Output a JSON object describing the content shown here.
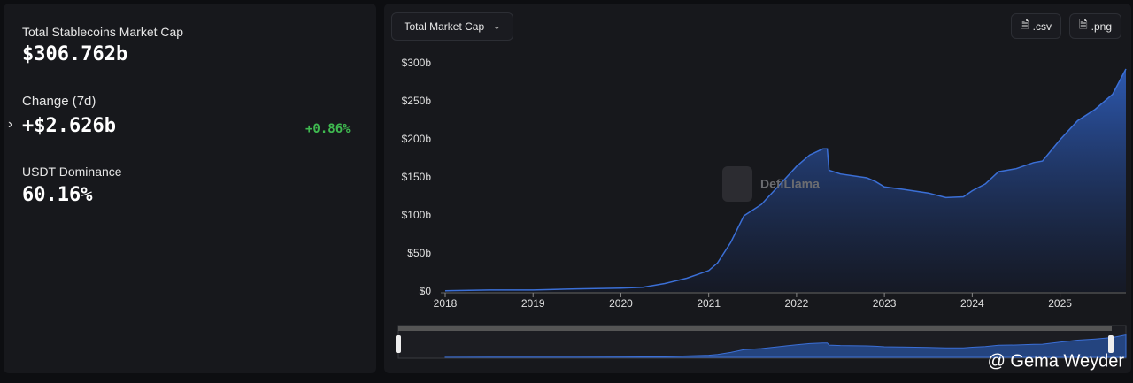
{
  "stats": {
    "market_cap_label": "Total Stablecoins Market Cap",
    "market_cap_value": "$306.762b",
    "change_label": "Change (7d)",
    "change_value": "+$2.626b",
    "change_percent": "+0.86%",
    "dominance_label": "USDT Dominance",
    "dominance_value": "60.16%"
  },
  "toolbar": {
    "metric_select": "Total Market Cap",
    "csv_button": ".csv",
    "png_button": ".png"
  },
  "watermark": "DefiLlama",
  "credit": "@ Gema Weyder",
  "chart_data": {
    "type": "area",
    "color": "#3b6fd6",
    "x": [
      2018.0,
      2018.5,
      2019.0,
      2019.5,
      2020.0,
      2020.25,
      2020.5,
      2020.75,
      2021.0,
      2021.1,
      2021.25,
      2021.4,
      2021.6,
      2021.8,
      2022.0,
      2022.15,
      2022.3,
      2022.35,
      2022.37,
      2022.5,
      2022.8,
      2022.9,
      2023.0,
      2023.2,
      2023.5,
      2023.7,
      2023.9,
      2024.0,
      2024.15,
      2024.3,
      2024.5,
      2024.7,
      2024.8,
      2025.0,
      2025.2,
      2025.4,
      2025.6,
      2025.75
    ],
    "values": [
      1.5,
      2.5,
      2.5,
      4,
      5,
      6,
      11,
      18,
      28,
      38,
      65,
      100,
      115,
      140,
      165,
      180,
      188,
      188,
      160,
      155,
      150,
      145,
      138,
      135,
      130,
      124,
      125,
      133,
      142,
      158,
      162,
      170,
      172,
      200,
      225,
      240,
      260,
      293
    ],
    "xlim": [
      2017.95,
      2025.75
    ],
    "xticks": [
      2018,
      2019,
      2020,
      2021,
      2022,
      2023,
      2024,
      2025
    ],
    "ylim": [
      0,
      300
    ],
    "yticks": [
      {
        "value": 0,
        "label": "$0"
      },
      {
        "value": 50,
        "label": "$50b"
      },
      {
        "value": 100,
        "label": "$100b"
      },
      {
        "value": 150,
        "label": "$150b"
      },
      {
        "value": 200,
        "label": "$200b"
      },
      {
        "value": 250,
        "label": "$250b"
      },
      {
        "value": 300,
        "label": "$300b"
      }
    ]
  }
}
